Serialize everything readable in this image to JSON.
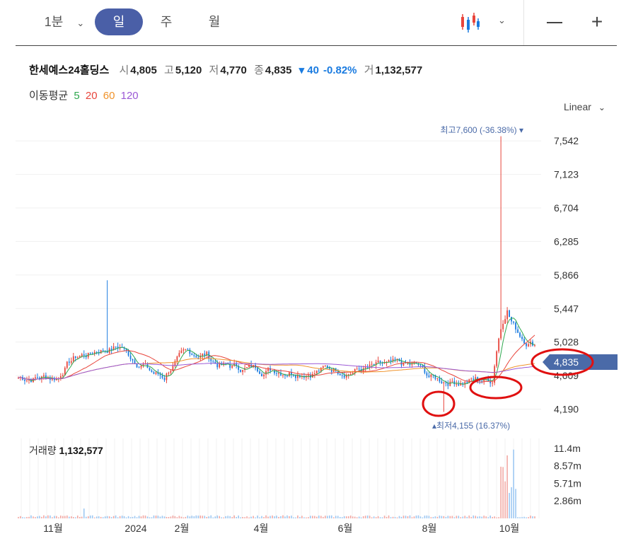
{
  "toolbar": {
    "interval_label": "1분",
    "tabs": [
      {
        "label": "일",
        "active": true
      },
      {
        "label": "주",
        "active": false
      },
      {
        "label": "월",
        "active": false
      }
    ],
    "chart_type_icon": "candlestick-icon",
    "minimize_icon": "minus-icon",
    "add_icon": "plus-icon"
  },
  "quote": {
    "name": "한세예스24홀딩스",
    "open_label": "시",
    "open": "4,805",
    "high_label": "고",
    "high": "5,120",
    "low_label": "저",
    "low": "4,770",
    "close_label": "종",
    "close": "4,835",
    "change": "▾ 40",
    "change_pct": "-0.82%",
    "volume_label": "거",
    "volume": "1,132,577"
  },
  "ma_legend": {
    "title": "이동평균",
    "items": [
      {
        "label": "5",
        "color": "#2fa84f"
      },
      {
        "label": "20",
        "color": "#e8453c"
      },
      {
        "label": "60",
        "color": "#f0932b"
      },
      {
        "label": "120",
        "color": "#9b59d6"
      }
    ]
  },
  "scale": "Linear",
  "colors": {
    "up": "#e8453c",
    "down": "#1a7be0",
    "accent": "#4a5fa7"
  },
  "chart_data": {
    "type": "candlestick",
    "y_ticks": [
      "7,542",
      "7,123",
      "6,704",
      "6,285",
      "5,866",
      "5,447",
      "5,028",
      "4,609",
      "4,190"
    ],
    "y_tick_values": [
      7542,
      7123,
      6704,
      6285,
      5866,
      5447,
      5028,
      4609,
      4190
    ],
    "x_ticks": [
      "11월",
      "2024",
      "2월",
      "4월",
      "6월",
      "8월",
      "10월"
    ],
    "current_price": "4,835",
    "max_annotation": {
      "label": "최고",
      "value": "7,600",
      "pct": "(-36.38%)",
      "marker": "▾"
    },
    "min_annotation": {
      "label": "최저",
      "value": "4,155",
      "pct": "(16.37%)",
      "marker": "▴"
    },
    "ohlc_summary": {
      "open": 4805,
      "high": 5120,
      "low": 4770,
      "close": 4835
    },
    "volume": {
      "label": "거래량",
      "value": "1,132,577",
      "y_ticks": [
        "11.4m",
        "8.57m",
        "5.71m",
        "2.86m"
      ],
      "y_tick_values": [
        11.4,
        8.57,
        5.71,
        2.86
      ]
    }
  }
}
